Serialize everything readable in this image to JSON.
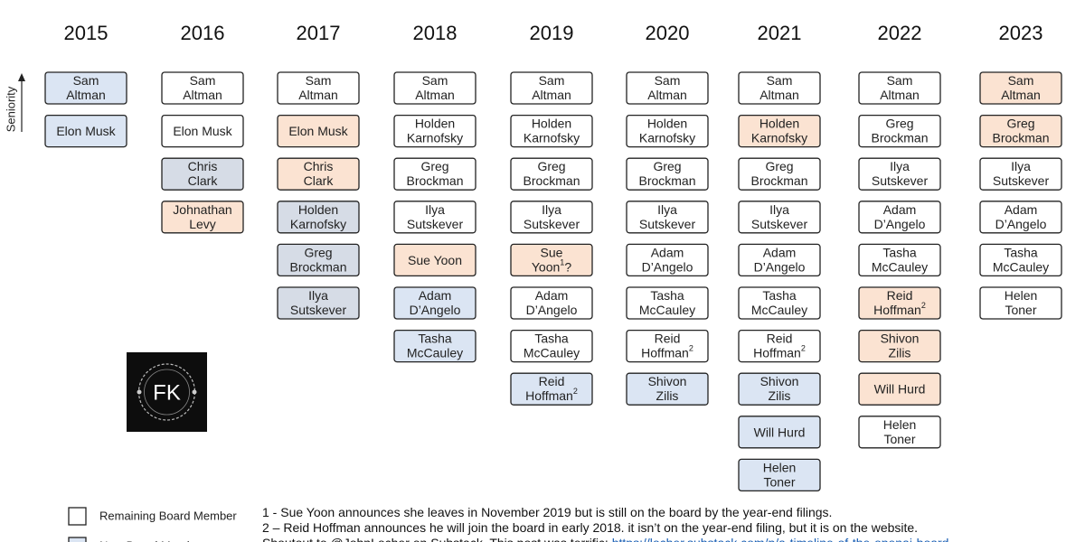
{
  "axis_label": "Seniority",
  "status_colors": {
    "new": "#dbe5f3",
    "remaining": "#ffffff",
    "leaving": "#fbe3d2",
    "other": "#d6dce6"
  },
  "columns": [
    {
      "year": "2015",
      "members": [
        {
          "lines": [
            "Sam",
            "Altman"
          ],
          "status": "new"
        },
        {
          "lines": [
            "Elon Musk"
          ],
          "status": "new"
        }
      ]
    },
    {
      "year": "2016",
      "members": [
        {
          "lines": [
            "Sam",
            "Altman"
          ],
          "status": "remaining"
        },
        {
          "lines": [
            "Elon Musk"
          ],
          "status": "remaining"
        },
        {
          "lines": [
            "Chris",
            "Clark"
          ],
          "status": "other"
        },
        {
          "lines": [
            "Johnathan",
            "Levy"
          ],
          "status": "leaving"
        }
      ]
    },
    {
      "year": "2017",
      "members": [
        {
          "lines": [
            "Sam",
            "Altman"
          ],
          "status": "remaining"
        },
        {
          "lines": [
            "Elon Musk"
          ],
          "status": "leaving"
        },
        {
          "lines": [
            "Chris",
            "Clark"
          ],
          "status": "leaving"
        },
        {
          "lines": [
            "Holden",
            "Karnofsky"
          ],
          "status": "other"
        },
        {
          "lines": [
            "Greg",
            "Brockman"
          ],
          "status": "other"
        },
        {
          "lines": [
            "Ilya",
            "Sutskever"
          ],
          "status": "other"
        }
      ]
    },
    {
      "year": "2018",
      "members": [
        {
          "lines": [
            "Sam",
            "Altman"
          ],
          "status": "remaining"
        },
        {
          "lines": [
            "Holden",
            "Karnofsky"
          ],
          "status": "remaining"
        },
        {
          "lines": [
            "Greg",
            "Brockman"
          ],
          "status": "remaining"
        },
        {
          "lines": [
            "Ilya",
            "Sutskever"
          ],
          "status": "remaining"
        },
        {
          "lines": [
            "Sue Yoon"
          ],
          "status": "leaving"
        },
        {
          "lines": [
            "Adam",
            "D’Angelo"
          ],
          "status": "new"
        },
        {
          "lines": [
            "Tasha",
            "McCauley"
          ],
          "status": "new"
        }
      ]
    },
    {
      "year": "2019",
      "members": [
        {
          "lines": [
            "Sam",
            "Altman"
          ],
          "status": "remaining"
        },
        {
          "lines": [
            "Holden",
            "Karnofsky"
          ],
          "status": "remaining"
        },
        {
          "lines": [
            "Greg",
            "Brockman"
          ],
          "status": "remaining"
        },
        {
          "lines": [
            "Ilya",
            "Sutskever"
          ],
          "status": "remaining"
        },
        {
          "lines": [
            "Sue",
            "Yoon"
          ],
          "sup": "1",
          "tail": "?",
          "status": "leaving"
        },
        {
          "lines": [
            "Adam",
            "D’Angelo"
          ],
          "status": "remaining"
        },
        {
          "lines": [
            "Tasha",
            "McCauley"
          ],
          "status": "remaining"
        },
        {
          "lines": [
            "Reid",
            "Hoffman"
          ],
          "sup": "2",
          "status": "new"
        }
      ]
    },
    {
      "year": "2020",
      "members": [
        {
          "lines": [
            "Sam",
            "Altman"
          ],
          "status": "remaining"
        },
        {
          "lines": [
            "Holden",
            "Karnofsky"
          ],
          "status": "remaining"
        },
        {
          "lines": [
            "Greg",
            "Brockman"
          ],
          "status": "remaining"
        },
        {
          "lines": [
            "Ilya",
            "Sutskever"
          ],
          "status": "remaining"
        },
        {
          "lines": [
            "Adam",
            "D’Angelo"
          ],
          "status": "remaining"
        },
        {
          "lines": [
            "Tasha",
            "McCauley"
          ],
          "status": "remaining"
        },
        {
          "lines": [
            "Reid",
            "Hoffman"
          ],
          "sup": "2",
          "status": "remaining"
        },
        {
          "lines": [
            "Shivon",
            "Zilis"
          ],
          "status": "new"
        }
      ]
    },
    {
      "year": "2021",
      "members": [
        {
          "lines": [
            "Sam",
            "Altman"
          ],
          "status": "remaining"
        },
        {
          "lines": [
            "Holden",
            "Karnofsky"
          ],
          "status": "leaving"
        },
        {
          "lines": [
            "Greg",
            "Brockman"
          ],
          "status": "remaining"
        },
        {
          "lines": [
            "Ilya",
            "Sutskever"
          ],
          "status": "remaining"
        },
        {
          "lines": [
            "Adam",
            "D’Angelo"
          ],
          "status": "remaining"
        },
        {
          "lines": [
            "Tasha",
            "McCauley"
          ],
          "status": "remaining"
        },
        {
          "lines": [
            "Reid",
            "Hoffman"
          ],
          "sup": "2",
          "status": "remaining"
        },
        {
          "lines": [
            "Shivon",
            "Zilis"
          ],
          "status": "new"
        },
        {
          "lines": [
            "Will Hurd"
          ],
          "status": "new"
        },
        {
          "lines": [
            "Helen",
            "Toner"
          ],
          "status": "new"
        }
      ]
    },
    {
      "year": "2022",
      "members": [
        {
          "lines": [
            "Sam",
            "Altman"
          ],
          "status": "remaining"
        },
        {
          "lines": [
            "Greg",
            "Brockman"
          ],
          "status": "remaining"
        },
        {
          "lines": [
            "Ilya",
            "Sutskever"
          ],
          "status": "remaining"
        },
        {
          "lines": [
            "Adam",
            "D’Angelo"
          ],
          "status": "remaining"
        },
        {
          "lines": [
            "Tasha",
            "McCauley"
          ],
          "status": "remaining"
        },
        {
          "lines": [
            "Reid",
            "Hoffman"
          ],
          "sup": "2",
          "status": "leaving"
        },
        {
          "lines": [
            "Shivon",
            "Zilis"
          ],
          "status": "leaving"
        },
        {
          "lines": [
            "Will Hurd"
          ],
          "status": "leaving"
        },
        {
          "lines": [
            "Helen",
            "Toner"
          ],
          "status": "remaining"
        }
      ]
    },
    {
      "year": "2023",
      "members": [
        {
          "lines": [
            "Sam",
            "Altman"
          ],
          "status": "leaving"
        },
        {
          "lines": [
            "Greg",
            "Brockman"
          ],
          "status": "leaving"
        },
        {
          "lines": [
            "Ilya",
            "Sutskever"
          ],
          "status": "remaining"
        },
        {
          "lines": [
            "Adam",
            "D’Angelo"
          ],
          "status": "remaining"
        },
        {
          "lines": [
            "Tasha",
            "McCauley"
          ],
          "status": "remaining"
        },
        {
          "lines": [
            "Helen",
            "Toner"
          ],
          "status": "remaining"
        }
      ]
    }
  ],
  "logo": {
    "text": "FK"
  },
  "legend": [
    {
      "label": "Remaining Board Member",
      "status": "remaining"
    },
    {
      "label": "New Board Member",
      "status": "new"
    }
  ],
  "notes": [
    "1 - Sue Yoon announces she leaves in November 2019 but is still on the board by the year-end filings.",
    "2 – Reid Hoffman announces he will join the board in early 2018. it isn’t on the year-end filing, but it is on the website."
  ],
  "credit": {
    "text": "Shoutout to @JohnLocher on Substack. This post was terrific: ",
    "link": "https://locher.substack.com/p/a-timeline-of-the-openai-board"
  }
}
